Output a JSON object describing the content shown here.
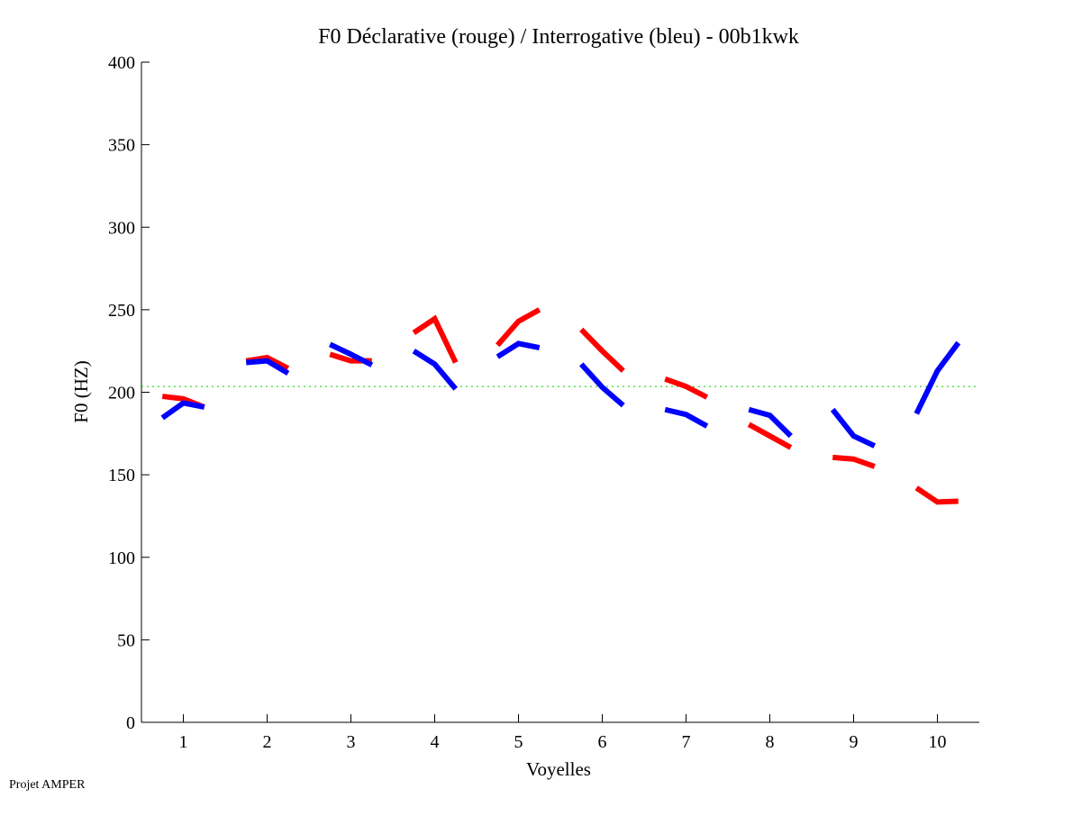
{
  "chart_data": {
    "type": "line",
    "title": "F0 Déclarative (rouge) / Interrogative (bleu) - 00b1kwk",
    "xlabel": "Voyelles",
    "ylabel": "F0 (HZ)",
    "xlim": [
      0.5,
      10.5
    ],
    "ylim": [
      0,
      400
    ],
    "xticks": [
      "1",
      "2",
      "3",
      "4",
      "5",
      "6",
      "7",
      "8",
      "9",
      "10"
    ],
    "yticks": [
      "0",
      "50",
      "100",
      "150",
      "200",
      "250",
      "300",
      "350",
      "400"
    ],
    "grid": false,
    "reference_line": {
      "y": 203.5,
      "color": "#00cc00",
      "style": "dotted"
    },
    "series": [
      {
        "name": "Déclarative",
        "color": "#ff0000",
        "vowels": [
          [
            197.5,
            196,
            191
          ],
          [
            219,
            221,
            214.5
          ],
          [
            223,
            219,
            219
          ],
          [
            236,
            244.5,
            218
          ],
          [
            228.5,
            243,
            250
          ],
          [
            238,
            225,
            213
          ],
          [
            208,
            203.5,
            197
          ],
          [
            180.5,
            173.5,
            166.5
          ],
          [
            160.5,
            159.5,
            155
          ],
          [
            142,
            133.5,
            134
          ]
        ]
      },
      {
        "name": "Interrogative",
        "color": "#0000ff",
        "vowels": [
          [
            184.5,
            193.5,
            191
          ],
          [
            218,
            219,
            211.5
          ],
          [
            229,
            223,
            216.5
          ],
          [
            225,
            217,
            202
          ],
          [
            221.5,
            229.5,
            227
          ],
          [
            217,
            203,
            192
          ],
          [
            189.5,
            186.5,
            179.5
          ],
          [
            189.5,
            186,
            173.5
          ],
          [
            189.5,
            173.5,
            167.5
          ],
          [
            187,
            213,
            230
          ]
        ]
      }
    ]
  },
  "footer": "Projet AMPER"
}
